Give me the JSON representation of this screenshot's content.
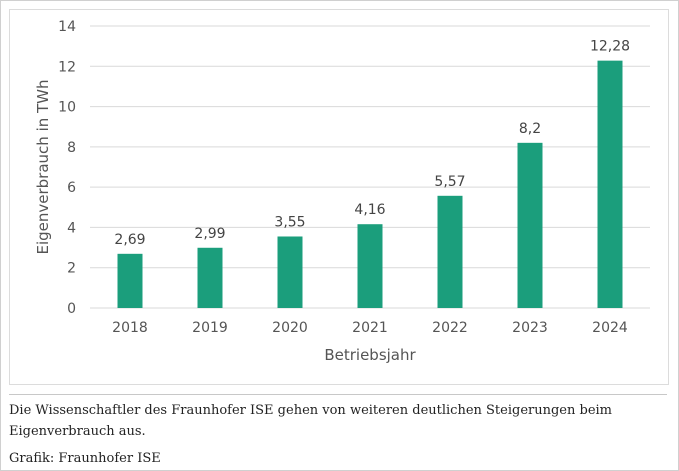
{
  "chart_data": {
    "type": "bar",
    "categories": [
      "2018",
      "2019",
      "2020",
      "2021",
      "2022",
      "2023",
      "2024"
    ],
    "values": [
      2.69,
      2.99,
      3.55,
      4.16,
      5.57,
      8.2,
      12.28
    ],
    "data_labels": [
      "2,69",
      "2,99",
      "3,55",
      "4,16",
      "5,57",
      "8,2",
      "12,28"
    ],
    "xlabel": "Betriebsjahr",
    "ylabel": "Eigenverbrauch in TWh",
    "ylim": [
      0,
      14
    ],
    "yticks": [
      0,
      2,
      4,
      6,
      8,
      10,
      12,
      14
    ],
    "grid": true,
    "bar_color": "#1b9e7c",
    "grid_color": "#d9d9d9"
  },
  "caption": "Die Wissenschaftler des Fraunhofer ISE gehen von weiteren deutlichen Steigerungen beim Eigenverbrauch aus.",
  "credit": "Grafik: Fraunhofer ISE"
}
